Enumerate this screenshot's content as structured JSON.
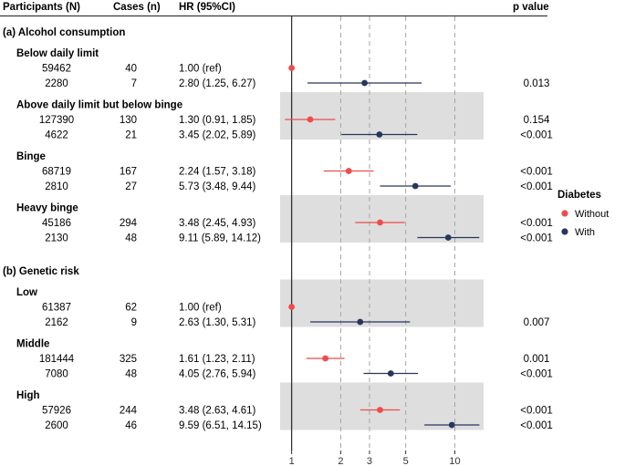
{
  "headers": {
    "participants": "Participants (N)",
    "cases": "Cases (n)",
    "hr": "HR (95%CI)",
    "p": "p value"
  },
  "legend": {
    "title": "Diabetes",
    "items": [
      {
        "label": "Without",
        "color": "#ef4b4b"
      },
      {
        "label": "With",
        "color": "#28365e"
      }
    ]
  },
  "colors": {
    "without": "#ef4b4b",
    "with": "#28365e",
    "band": "#dedede",
    "refline": "#333333",
    "grid": "#a6a6a6"
  },
  "chart_data": {
    "type": "forest",
    "x_scale": "log",
    "xlim": [
      0.85,
      15
    ],
    "x_ticks": [
      1,
      2,
      3,
      5,
      10
    ],
    "dashed_ref_lines": [
      2,
      3,
      5,
      10
    ],
    "reference_line": 1,
    "series": [
      {
        "name": "Without"
      },
      {
        "name": "With"
      }
    ],
    "sections": [
      {
        "label": "(a) Alcohol consumption",
        "groups": [
          {
            "label": "Below daily limit",
            "shaded": false,
            "rows": [
              {
                "diabetes": "Without",
                "participants": "59462",
                "cases": "40",
                "hr_text": "1.00 (ref)",
                "hr": 1.0,
                "lo": 1.0,
                "hi": 1.0,
                "p": ""
              },
              {
                "diabetes": "With",
                "participants": "2280",
                "cases": "7",
                "hr_text": "2.80 (1.25, 6.27)",
                "hr": 2.8,
                "lo": 1.25,
                "hi": 6.27,
                "p": "0.013"
              }
            ]
          },
          {
            "label": "Above daily limit but below binge",
            "shaded": true,
            "rows": [
              {
                "diabetes": "Without",
                "participants": "127390",
                "cases": "130",
                "hr_text": "1.30 (0.91, 1.85)",
                "hr": 1.3,
                "lo": 0.91,
                "hi": 1.85,
                "p": "0.154"
              },
              {
                "diabetes": "With",
                "participants": "4622",
                "cases": "21",
                "hr_text": "3.45 (2.02, 5.89)",
                "hr": 3.45,
                "lo": 2.02,
                "hi": 5.89,
                "p": "<0.001"
              }
            ]
          },
          {
            "label": "Binge",
            "shaded": false,
            "rows": [
              {
                "diabetes": "Without",
                "participants": "68719",
                "cases": "167",
                "hr_text": "2.24 (1.57, 3.18)",
                "hr": 2.24,
                "lo": 1.57,
                "hi": 3.18,
                "p": "<0.001"
              },
              {
                "diabetes": "With",
                "participants": "2810",
                "cases": "27",
                "hr_text": "5.73 (3.48, 9.44)",
                "hr": 5.73,
                "lo": 3.48,
                "hi": 9.44,
                "p": "<0.001"
              }
            ]
          },
          {
            "label": "Heavy binge",
            "shaded": true,
            "rows": [
              {
                "diabetes": "Without",
                "participants": "45186",
                "cases": "294",
                "hr_text": "3.48 (2.45, 4.93)",
                "hr": 3.48,
                "lo": 2.45,
                "hi": 4.93,
                "p": "<0.001"
              },
              {
                "diabetes": "With",
                "participants": "2130",
                "cases": "48",
                "hr_text": "9.11 (5.89, 14.12)",
                "hr": 9.11,
                "lo": 5.89,
                "hi": 14.12,
                "p": "<0.001"
              }
            ]
          }
        ]
      },
      {
        "label": "(b) Genetic risk",
        "groups": [
          {
            "label": "Low",
            "shaded": true,
            "rows": [
              {
                "diabetes": "Without",
                "participants": "61387",
                "cases": "62",
                "hr_text": "1.00 (ref)",
                "hr": 1.0,
                "lo": 1.0,
                "hi": 1.0,
                "p": ""
              },
              {
                "diabetes": "With",
                "participants": "2162",
                "cases": "9",
                "hr_text": "2.63 (1.30, 5.31)",
                "hr": 2.63,
                "lo": 1.3,
                "hi": 5.31,
                "p": "0.007"
              }
            ]
          },
          {
            "label": "Middle",
            "shaded": false,
            "rows": [
              {
                "diabetes": "Without",
                "participants": "181444",
                "cases": "325",
                "hr_text": "1.61 (1.23, 2.11)",
                "hr": 1.61,
                "lo": 1.23,
                "hi": 2.11,
                "p": "0.001"
              },
              {
                "diabetes": "With",
                "participants": "7080",
                "cases": "48",
                "hr_text": "4.05 (2.76, 5.94)",
                "hr": 4.05,
                "lo": 2.76,
                "hi": 5.94,
                "p": "<0.001"
              }
            ]
          },
          {
            "label": "High",
            "shaded": true,
            "rows": [
              {
                "diabetes": "Without",
                "participants": "57926",
                "cases": "244",
                "hr_text": "3.48 (2.63, 4.61)",
                "hr": 3.48,
                "lo": 2.63,
                "hi": 4.61,
                "p": "<0.001"
              },
              {
                "diabetes": "With",
                "participants": "2600",
                "cases": "46",
                "hr_text": "9.59 (6.51, 14.15)",
                "hr": 9.59,
                "lo": 6.51,
                "hi": 14.15,
                "p": "<0.001"
              }
            ]
          }
        ]
      }
    ]
  }
}
